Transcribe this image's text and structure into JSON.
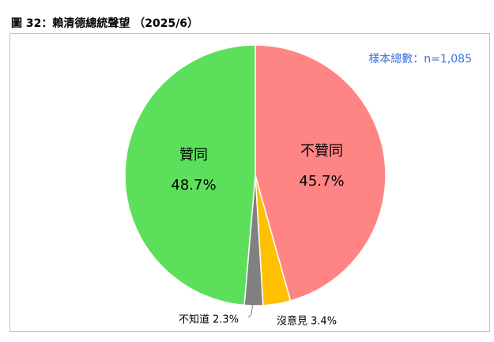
{
  "chart_data": {
    "type": "pie",
    "title": "圖 32：賴清德總統聲望 （2025/6）",
    "annotation": "樣本總數：n=1,085",
    "categories": [
      "不贊同",
      "沒意見",
      "不知道",
      "贊同"
    ],
    "values": [
      45.7,
      3.4,
      2.3,
      48.7
    ],
    "value_labels": [
      "45.7%",
      "3.4%",
      "2.3%",
      "48.7%"
    ],
    "colors": [
      "#ff8585",
      "#ffc000",
      "#808080",
      "#5ce05c"
    ]
  }
}
